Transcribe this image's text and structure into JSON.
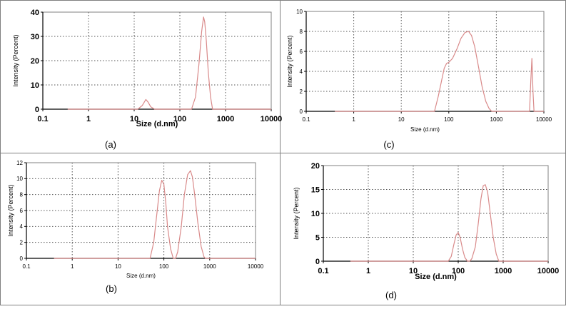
{
  "colors": {
    "curve": "#d98a8a",
    "grid": "#555555",
    "frame": "#808080",
    "axis": "#000000"
  },
  "chart_data": [
    {
      "id": "a",
      "type": "line",
      "caption": "(a)",
      "xlabel": "Size (d.nm)",
      "ylabel": "Intensity (Percent)",
      "x_scale": "log",
      "xlim": [
        0.1,
        10000
      ],
      "ylim": [
        0,
        40
      ],
      "x_ticks": [
        0.1,
        1,
        10,
        100,
        1000,
        10000
      ],
      "x_tick_labels": [
        "0.1",
        "1",
        "10",
        "100",
        "1000",
        "10000"
      ],
      "y_ticks": [
        0,
        10,
        20,
        30,
        40
      ],
      "y_tick_labels": [
        "0",
        "10",
        "20",
        "30",
        "40"
      ],
      "grid": true,
      "series": [
        {
          "x": [
            0.35,
            8,
            12,
            15,
            18,
            20,
            23,
            28,
            180,
            220,
            260,
            300,
            330,
            350,
            380,
            420,
            470,
            520,
            10000
          ],
          "y": [
            0,
            0,
            0,
            1.5,
            4,
            3,
            1,
            0,
            0,
            5,
            18,
            32,
            38,
            36,
            28,
            15,
            5,
            0,
            0
          ]
        }
      ]
    },
    {
      "id": "b",
      "type": "line",
      "caption": "(b)",
      "xlabel": "Size (d.nm)",
      "ylabel": "Intensity (Percent)",
      "x_scale": "log",
      "xlim": [
        0.1,
        10000
      ],
      "ylim": [
        0,
        12
      ],
      "x_ticks": [
        0.1,
        1,
        10,
        100,
        1000,
        10000
      ],
      "x_tick_labels": [
        "0.1",
        "1",
        "10",
        "100",
        "1000",
        "10000"
      ],
      "y_ticks": [
        0,
        2,
        4,
        6,
        8,
        10,
        12
      ],
      "y_tick_labels": [
        "0",
        "2",
        "4",
        "6",
        "8",
        "10",
        "12"
      ],
      "grid": true,
      "series": [
        {
          "x": [
            0.4,
            50,
            60,
            70,
            80,
            90,
            100,
            110,
            120,
            140,
            160,
            180,
            200,
            240,
            280,
            330,
            380,
            420,
            470,
            550,
            650,
            750,
            800,
            10000
          ],
          "y": [
            0,
            0,
            2,
            5.5,
            8.5,
            9.8,
            9.3,
            7,
            4,
            1.2,
            0,
            0,
            0.8,
            4,
            8,
            10.5,
            11,
            10.2,
            8,
            4.5,
            1.5,
            0.2,
            0,
            0
          ]
        }
      ]
    },
    {
      "id": "c",
      "type": "line",
      "caption": "(c)",
      "xlabel": "Size (d.nm)",
      "ylabel": "Intensity (Percent)",
      "x_scale": "log",
      "xlim": [
        0.1,
        10000
      ],
      "ylim": [
        0,
        10
      ],
      "x_ticks": [
        0.1,
        1,
        10,
        100,
        1000,
        10000
      ],
      "x_tick_labels": [
        "0.1",
        "1",
        "10",
        "100",
        "1000",
        "10000"
      ],
      "y_ticks": [
        0,
        2,
        4,
        6,
        8,
        10
      ],
      "y_tick_labels": [
        "0",
        "2",
        "4",
        "6",
        "8",
        "10"
      ],
      "grid": true,
      "series": [
        {
          "x": [
            0.4,
            50,
            60,
            70,
            80,
            90,
            100,
            120,
            150,
            180,
            220,
            260,
            300,
            350,
            420,
            500,
            600,
            700,
            800,
            900,
            5000,
            5300,
            5600,
            5900,
            6200,
            10000
          ],
          "y": [
            0,
            0,
            1.5,
            3,
            4.3,
            4.8,
            4.9,
            5.3,
            6.3,
            7.3,
            7.9,
            8,
            7.6,
            6.5,
            4.5,
            2.5,
            1,
            0.3,
            0,
            0,
            0,
            3,
            5.3,
            2,
            0,
            0
          ]
        }
      ]
    },
    {
      "id": "d",
      "type": "line",
      "caption": "(d)",
      "xlabel": "Size (d.nm)",
      "ylabel": "Intensity (Percent)",
      "x_scale": "log",
      "xlim": [
        0.1,
        10000
      ],
      "ylim": [
        0,
        20
      ],
      "x_ticks": [
        0.1,
        1,
        10,
        100,
        1000,
        10000
      ],
      "x_tick_labels": [
        "0.1",
        "1",
        "10",
        "100",
        "1000",
        "10000"
      ],
      "y_ticks": [
        0,
        5,
        10,
        15,
        20
      ],
      "y_tick_labels": [
        "0",
        "5",
        "10",
        "15",
        "20"
      ],
      "grid": true,
      "series": [
        {
          "x": [
            0.4,
            60,
            70,
            80,
            90,
            100,
            110,
            125,
            140,
            160,
            180,
            200,
            240,
            280,
            320,
            360,
            400,
            450,
            500,
            600,
            700,
            800,
            10000
          ],
          "y": [
            0,
            0,
            1,
            3.5,
            5.5,
            6,
            5,
            2.5,
            0.8,
            0,
            0,
            0.5,
            3,
            8,
            13,
            15.8,
            16,
            14.5,
            11,
            5,
            1.5,
            0,
            0
          ]
        }
      ]
    }
  ]
}
